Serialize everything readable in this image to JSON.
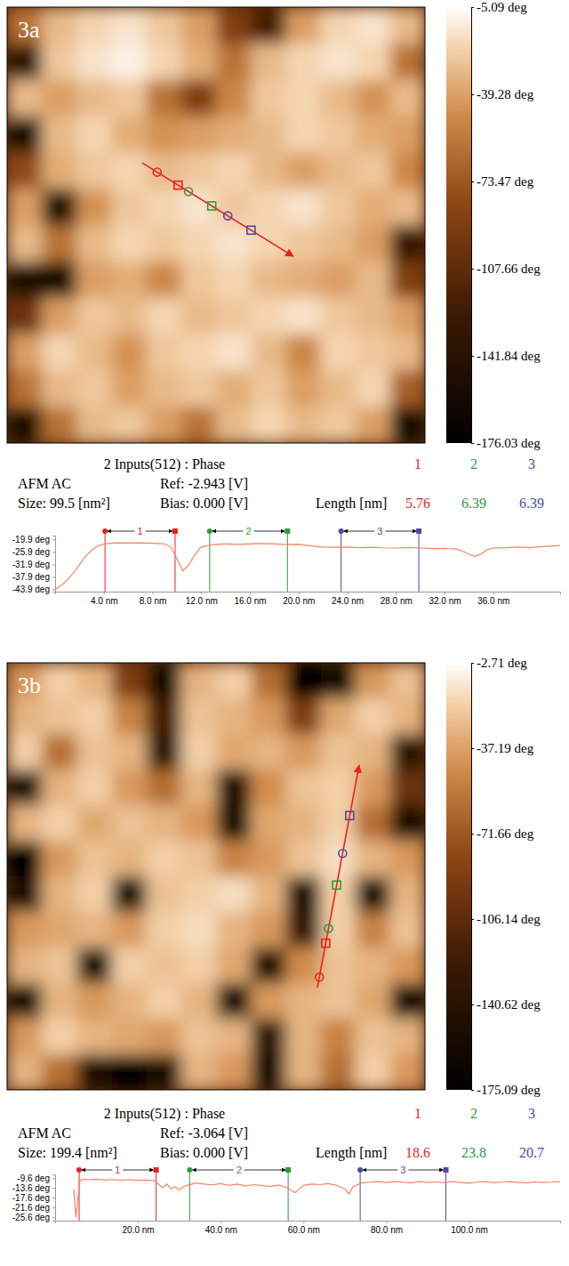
{
  "chart_data": [
    {
      "type": "heatmap",
      "panel": "3a",
      "tick_labels": false,
      "color": "#e8231f",
      "zlim": [
        -176.03,
        -5.09
      ],
      "zticks": [
        {
          "value": -5.09,
          "label": "-5.09 deg"
        },
        {
          "value": -39.28,
          "label": "-39.28 deg"
        },
        {
          "value": -73.47,
          "label": "-73.47 deg"
        },
        {
          "value": -107.66,
          "label": "-107.66 deg"
        },
        {
          "value": -141.84,
          "label": "-141.84 deg"
        },
        {
          "value": -176.03,
          "label": "-176.03 deg"
        }
      ],
      "profile_x": [
        3.88,
        8.22
      ],
      "profile_y": [
        4.29,
        6.86
      ],
      "z": [
        [
          -60,
          -30,
          -20,
          -15,
          -25,
          -40,
          -90,
          -120,
          -40,
          -20,
          -15,
          -30
        ],
        [
          -140,
          -25,
          -15,
          -10,
          -20,
          -35,
          -60,
          -30,
          -20,
          -15,
          -20,
          -60
        ],
        [
          -30,
          -40,
          -30,
          -25,
          -60,
          -90,
          -50,
          -25,
          -20,
          -30,
          -45,
          -30
        ],
        [
          -160,
          -30,
          -20,
          -35,
          -45,
          -40,
          -35,
          -30,
          -20,
          -25,
          -35,
          -40
        ],
        [
          -80,
          -35,
          -25,
          -20,
          -30,
          -25,
          -20,
          -30,
          -40,
          -30,
          -25,
          -50
        ],
        [
          -40,
          -150,
          -45,
          -25,
          -20,
          -15,
          -25,
          -20,
          -15,
          -25,
          -35,
          -30
        ],
        [
          -30,
          -60,
          -30,
          -20,
          -25,
          -20,
          -15,
          -20,
          -25,
          -30,
          -40,
          -130
        ],
        [
          -150,
          -160,
          -40,
          -35,
          -50,
          -25,
          -20,
          -30,
          -35,
          -40,
          -30,
          -90
        ],
        [
          -100,
          -40,
          -25,
          -30,
          -20,
          -30,
          -25,
          -20,
          -15,
          -25,
          -30,
          -40
        ],
        [
          -40,
          -20,
          -30,
          -45,
          -25,
          -20,
          -15,
          -30,
          -50,
          -20,
          -25,
          -30
        ],
        [
          -60,
          -30,
          -25,
          -40,
          -30,
          -25,
          -35,
          -25,
          -40,
          -30,
          -20,
          -70
        ],
        [
          -150,
          -60,
          -30,
          -25,
          -40,
          -60,
          -30,
          -20,
          -30,
          -25,
          -40,
          -160
        ]
      ]
    },
    {
      "type": "line",
      "title": "2 Inputs(512) : Phase",
      "color": "#f4845f",
      "annotations": [
        "AFM AC",
        "Ref: -2.943 [V]",
        "Size: 99.5 [nm²]",
        "Bias: 0.000 [V]",
        "Length [nm]"
      ],
      "measurements": [
        {
          "name": "1",
          "color": "#e8231f",
          "length": 5.76,
          "start": 4.1,
          "end": 9.86
        },
        {
          "name": "2",
          "color": "#2e9a3e",
          "length": 6.39,
          "start": 12.7,
          "end": 19.09
        },
        {
          "name": "3",
          "color": "#4a4aa8",
          "length": 6.39,
          "start": 23.5,
          "end": 29.89
        }
      ],
      "xlim": [
        0,
        41.5
      ],
      "ylim": [
        -45,
        -18
      ],
      "xticks": [
        {
          "value": 4,
          "label": "4.0 nm"
        },
        {
          "value": 8,
          "label": "8.0 nm"
        },
        {
          "value": 12,
          "label": "12.0 nm"
        },
        {
          "value": 16,
          "label": "16.0 nm"
        },
        {
          "value": 20,
          "label": "20.0 nm"
        },
        {
          "value": 24,
          "label": "24.0 nm"
        },
        {
          "value": 28,
          "label": "28.0 nm"
        },
        {
          "value": 32,
          "label": "32.0 nm"
        },
        {
          "value": 36,
          "label": "36.0 nm"
        }
      ],
      "yticks": [
        {
          "value": -19.9,
          "label": "-19.9 deg"
        },
        {
          "value": -25.9,
          "label": "-25.9 deg"
        },
        {
          "value": -31.9,
          "label": "-31.9 deg"
        },
        {
          "value": -37.9,
          "label": "-37.9 deg"
        },
        {
          "value": -43.9,
          "label": "-43.9 deg"
        }
      ],
      "x": [
        0,
        0.5,
        1,
        1.5,
        2,
        2.5,
        3,
        3.5,
        4,
        5,
        6,
        7,
        8,
        9,
        9.5,
        10,
        10.5,
        11,
        11.5,
        12,
        13,
        14,
        15,
        16,
        17,
        18,
        19,
        20,
        21,
        22,
        23,
        24,
        25,
        26,
        27,
        28,
        29,
        30,
        31,
        32,
        33,
        33.5,
        34,
        34.5,
        35,
        35.5,
        36,
        37,
        38,
        39,
        40,
        41,
        41.5
      ],
      "values": [
        -43.9,
        -42,
        -39.5,
        -36,
        -32,
        -28,
        -25,
        -23,
        -22,
        -21.5,
        -21.6,
        -21.5,
        -21.7,
        -22,
        -23.5,
        -29,
        -35,
        -32,
        -27,
        -23.5,
        -22.3,
        -22,
        -22.2,
        -22,
        -21.8,
        -22,
        -22.3,
        -22.2,
        -23,
        -23.5,
        -23.6,
        -23.5,
        -23.8,
        -23.6,
        -23.9,
        -24,
        -23.7,
        -24,
        -24.3,
        -24.2,
        -24.5,
        -25.5,
        -27,
        -28,
        -27,
        -24.8,
        -24,
        -23.8,
        -23.5,
        -23.8,
        -23.3,
        -23,
        -22.8
      ]
    },
    {
      "type": "heatmap",
      "panel": "3b",
      "tick_labels": false,
      "color": "#e8231f",
      "zlim": [
        -175.09,
        -2.71
      ],
      "zticks": [
        {
          "value": -2.71,
          "label": "-2.71 deg"
        },
        {
          "value": -37.19,
          "label": "-37.19 deg"
        },
        {
          "value": -71.66,
          "label": "-71.66 deg"
        },
        {
          "value": -106.14,
          "label": "-106.14 deg"
        },
        {
          "value": -140.62,
          "label": "-140.62 deg"
        },
        {
          "value": -175.09,
          "label": "-175.09 deg"
        }
      ],
      "profile_x": [
        8.91,
        10.11
      ],
      "profile_y": [
        9.13,
        2.88
      ],
      "z": [
        [
          -40,
          -20,
          -30,
          -90,
          -160,
          -30,
          -20,
          -60,
          -170,
          -160,
          -40,
          -25
        ],
        [
          -30,
          -25,
          -20,
          -50,
          -120,
          -25,
          -30,
          -40,
          -90,
          -35,
          -20,
          -30
        ],
        [
          -20,
          -60,
          -25,
          -30,
          -140,
          -20,
          -35,
          -30,
          -40,
          -25,
          -30,
          -140
        ],
        [
          -160,
          -30,
          -20,
          -40,
          -60,
          -30,
          -150,
          -45,
          -25,
          -20,
          -40,
          -100
        ],
        [
          -30,
          -20,
          -35,
          -25,
          -30,
          -40,
          -160,
          -35,
          -30,
          -20,
          -60,
          -150
        ],
        [
          -170,
          -40,
          -25,
          -30,
          -20,
          -25,
          -50,
          -40,
          -25,
          -15,
          -30,
          -40
        ],
        [
          -150,
          -30,
          -20,
          -160,
          -25,
          -20,
          -15,
          -30,
          -150,
          -20,
          -160,
          -30
        ],
        [
          -40,
          -35,
          -30,
          -40,
          -20,
          -15,
          -30,
          -40,
          -130,
          -20,
          -50,
          -25
        ],
        [
          -30,
          -25,
          -160,
          -20,
          -25,
          -20,
          -35,
          -150,
          -45,
          -25,
          -30,
          -40
        ],
        [
          -160,
          -30,
          -40,
          -30,
          -20,
          -30,
          -160,
          -40,
          -30,
          -25,
          -35,
          -160
        ],
        [
          -40,
          -20,
          -30,
          -35,
          -40,
          -25,
          -30,
          -140,
          -30,
          -50,
          -25,
          -30
        ],
        [
          -30,
          -60,
          -150,
          -170,
          -150,
          -30,
          -40,
          -160,
          -30,
          -60,
          -20,
          -40
        ]
      ]
    },
    {
      "type": "line",
      "title": "2 Inputs(512) : Phase",
      "color": "#f4845f",
      "annotations": [
        "AFM AC",
        "Ref: -3.064 [V]",
        "Size: 199.4 [nm²]",
        "Bias: 0.000 [V]",
        "Length [nm]"
      ],
      "measurements": [
        {
          "name": "1",
          "color": "#e8231f",
          "length": 18.6,
          "start": 5.8,
          "end": 24.4
        },
        {
          "name": "2",
          "color": "#2e9a3e",
          "length": 23.8,
          "start": 32.5,
          "end": 56.3
        },
        {
          "name": "3",
          "color": "#4a4aa8",
          "length": 20.7,
          "start": 73.7,
          "end": 94.4
        }
      ],
      "xlim": [
        0,
        122
      ],
      "ylim": [
        -27,
        -8
      ],
      "xticks": [
        {
          "value": 20,
          "label": "20.0 nm"
        },
        {
          "value": 40,
          "label": "40.0 nm"
        },
        {
          "value": 60,
          "label": "60.0 nm"
        },
        {
          "value": 80,
          "label": "80.0 nm"
        },
        {
          "value": 100,
          "label": "100.0 nm"
        }
      ],
      "yticks": [
        {
          "value": -9.6,
          "label": "-9.6 deg"
        },
        {
          "value": -13.6,
          "label": "-13.6 deg"
        },
        {
          "value": -17.6,
          "label": "-17.6 deg"
        },
        {
          "value": -21.6,
          "label": "-21.6 deg"
        },
        {
          "value": -25.6,
          "label": "-25.6 deg"
        }
      ],
      "x": [
        4.5,
        5,
        5.5,
        6,
        7,
        8,
        10,
        12,
        14,
        16,
        18,
        20,
        22,
        24,
        25,
        26,
        27,
        28,
        29,
        30,
        31,
        32,
        34,
        36,
        38,
        40,
        42,
        44,
        46,
        48,
        50,
        52,
        54,
        56,
        57,
        58,
        59,
        60,
        62,
        64,
        66,
        68,
        70,
        71,
        72,
        74,
        76,
        78,
        80,
        82,
        84,
        86,
        88,
        90,
        92,
        94,
        96,
        98,
        100,
        102,
        104,
        106,
        108,
        110,
        112,
        114,
        116,
        118,
        120,
        122
      ],
      "values": [
        -14,
        -25.6,
        -18,
        -10.5,
        -10,
        -10.2,
        -10,
        -10.3,
        -10.1,
        -10.4,
        -10.2,
        -10.5,
        -10.3,
        -10.6,
        -12,
        -13.5,
        -12,
        -14,
        -13,
        -14.5,
        -13,
        -12.5,
        -11.5,
        -12,
        -12.3,
        -11.8,
        -12.5,
        -12,
        -12.8,
        -12.2,
        -12.6,
        -13,
        -12.4,
        -13.5,
        -14.5,
        -15.5,
        -14,
        -12.5,
        -12,
        -12.2,
        -11.8,
        -12.5,
        -14,
        -16,
        -13,
        -11.5,
        -11.2,
        -11,
        -11.3,
        -11,
        -11.2,
        -11.5,
        -11,
        -11.3,
        -11.1,
        -11.4,
        -11,
        -11.3,
        -11.6,
        -11.2,
        -11,
        -11.4,
        -11.2,
        -11,
        -11.3,
        -11.5,
        -11.1,
        -11.3,
        -11.2,
        -11
      ]
    }
  ]
}
